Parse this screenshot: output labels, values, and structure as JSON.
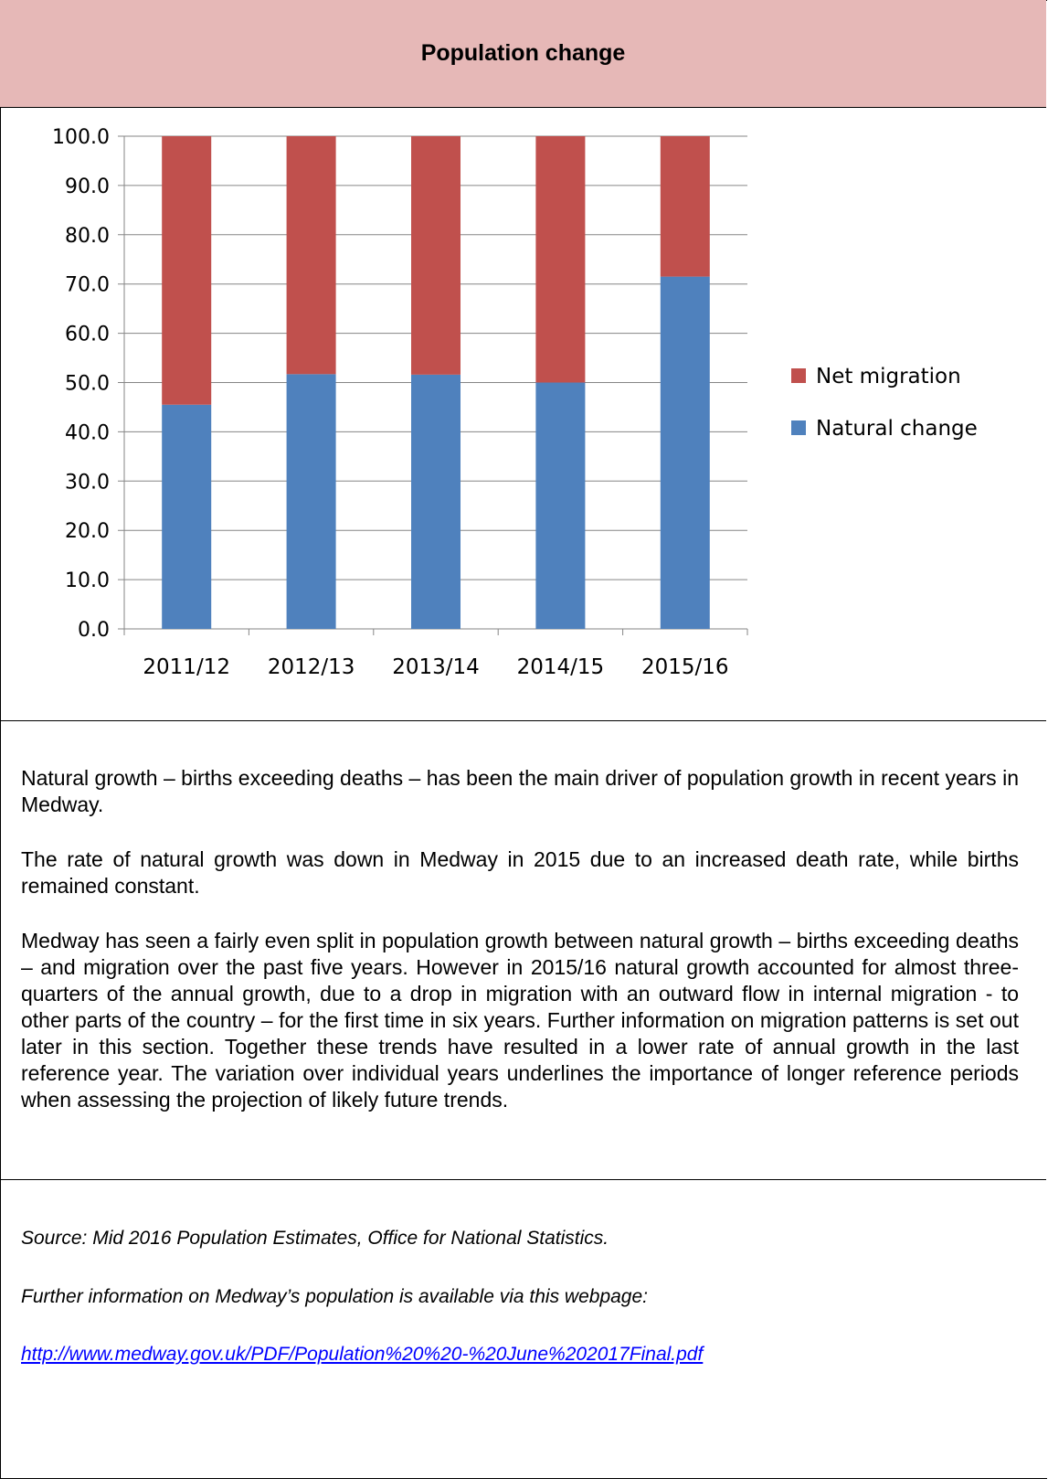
{
  "header": {
    "title": "Population change"
  },
  "chart_data": {
    "type": "bar",
    "stacked": true,
    "categories": [
      "2011/12",
      "2012/13",
      "2013/14",
      "2014/15",
      "2015/16"
    ],
    "series": [
      {
        "name": "Natural change",
        "values": [
          45.5,
          51.7,
          51.6,
          50.0,
          71.5
        ],
        "color": "#4f81bd"
      },
      {
        "name": "Net migration",
        "values": [
          54.5,
          48.3,
          48.4,
          50.0,
          28.5
        ],
        "color": "#c0504d"
      }
    ],
    "ylim": [
      0,
      100
    ],
    "yticks": [
      "0.0",
      "10.0",
      "20.0",
      "30.0",
      "40.0",
      "50.0",
      "60.0",
      "70.0",
      "80.0",
      "90.0",
      "100.0"
    ],
    "grid": true,
    "legend": [
      {
        "label": "Net migration",
        "color": "#c0504d"
      },
      {
        "label": "Natural change",
        "color": "#4f81bd"
      }
    ],
    "legend_position": "right"
  },
  "body": {
    "paragraphs": [
      "Natural growth – births exceeding deaths – has been the main driver of population growth in recent years in Medway.",
      "The rate of natural growth was down in Medway in 2015 due to an increased death rate, while births remained constant.",
      "Medway has seen a fairly even split in population growth between natural growth – births exceeding deaths – and migration over the past five years. However in 2015/16 natural growth accounted for almost three-quarters of the annual growth, due to a drop in migration with an outward flow in internal migration - to other parts of the country – for the first time in six years. Further information on migration patterns is set out later in this section. Together these trends have resulted in a lower rate of annual growth in the last reference year. The variation over individual years underlines the importance of longer reference periods when assessing the projection of likely future trends."
    ]
  },
  "source": {
    "citation": "Source: Mid 2016 Population Estimates, Office for National Statistics.",
    "further_info": "Further information on Medway’s population is available via this webpage:",
    "link": "http://www.medway.gov.uk/PDF/Population%20%20-%20June%202017Final.pdf"
  },
  "colors": {
    "header_bg": "#e6b8b7",
    "link": "#0000ff",
    "grid": "#868686"
  }
}
